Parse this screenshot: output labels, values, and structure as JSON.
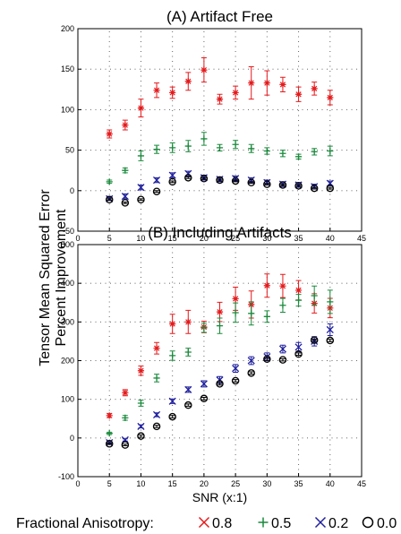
{
  "figure": {
    "ylabel_line1": "Tensor Mean Squared Error",
    "ylabel_line2": "Percent Improvement",
    "legend_title": "Fractional Anisotropy:"
  },
  "series_styles": [
    {
      "name": "0.8",
      "marker": "asterisk",
      "color": "#e41a1c"
    },
    {
      "name": "0.5",
      "marker": "plus",
      "color": "#1a8a3c"
    },
    {
      "name": "0.2",
      "marker": "cross",
      "color": "#1f1f9e"
    },
    {
      "name": "0.0",
      "marker": "circle",
      "color": "#000000"
    }
  ],
  "chart_data": [
    {
      "type": "scatter",
      "title": "(A) Artifact Free",
      "xlabel": "",
      "ylabel": "Tensor Mean Squared Error Percent Improvement",
      "xlim": [
        0,
        45
      ],
      "ylim": [
        -50,
        200
      ],
      "xticks": [
        "0",
        "5",
        "10",
        "15",
        "20",
        "25",
        "30",
        "35",
        "40",
        "45"
      ],
      "yticks": [
        "-50",
        "0",
        "50",
        "100",
        "150",
        "200"
      ],
      "grid": true,
      "error_bars": true,
      "x": [
        5,
        7.5,
        10,
        12.5,
        15,
        17.5,
        20,
        22.5,
        25,
        27.5,
        30,
        32.5,
        35,
        37.5,
        40
      ],
      "series": [
        {
          "name": "0.8",
          "values": [
            70,
            81,
            102,
            124,
            121,
            135,
            149,
            113,
            121,
            133,
            133,
            131,
            119,
            126,
            115
          ],
          "errors": [
            5,
            6,
            11,
            9,
            7,
            11,
            15,
            6,
            8,
            20,
            15,
            9,
            9,
            8,
            9
          ]
        },
        {
          "name": "0.5",
          "values": [
            11,
            25,
            43,
            51,
            53,
            55,
            64,
            53,
            57,
            52,
            49,
            46,
            42,
            48,
            49
          ],
          "errors": [
            2,
            3,
            6,
            5,
            6,
            7,
            8,
            4,
            5,
            5,
            4,
            4,
            3,
            4,
            6
          ]
        },
        {
          "name": "0.2",
          "values": [
            -10,
            -7,
            4,
            13,
            19,
            21,
            16,
            14,
            15,
            13,
            10,
            8,
            7,
            5,
            9
          ],
          "errors": [
            2,
            3,
            3,
            3,
            3,
            3,
            3,
            3,
            3,
            3,
            3,
            3,
            3,
            3,
            3
          ]
        },
        {
          "name": "0.0",
          "values": [
            -11,
            -15,
            -11,
            -1,
            11,
            16,
            15,
            13,
            12,
            10,
            8,
            7,
            6,
            3,
            3
          ],
          "errors": [
            1,
            1,
            1,
            1,
            1,
            1,
            1,
            1,
            1,
            1,
            1,
            1,
            1,
            1,
            1
          ]
        }
      ]
    },
    {
      "type": "scatter",
      "title": "(B) Including Artifacts",
      "xlabel": "SNR (x:1)",
      "ylabel": "Tensor Mean Squared Error Percent Improvement",
      "xlim": [
        0,
        45
      ],
      "ylim": [
        -100,
        500
      ],
      "xticks": [
        "0",
        "5",
        "10",
        "15",
        "20",
        "25",
        "30",
        "35",
        "40",
        "45"
      ],
      "yticks": [
        "-100",
        "0",
        "100",
        "200",
        "300",
        "400",
        "500"
      ],
      "grid": true,
      "error_bars": true,
      "x": [
        5,
        7.5,
        10,
        12.5,
        15,
        17.5,
        20,
        22.5,
        25,
        27.5,
        30,
        32.5,
        35,
        37.5,
        40
      ],
      "series": [
        {
          "name": "0.8",
          "values": [
            58,
            117,
            174,
            232,
            295,
            300,
            287,
            326,
            360,
            345,
            394,
            393,
            382,
            348,
            336
          ],
          "errors": [
            5,
            8,
            12,
            15,
            25,
            30,
            15,
            25,
            30,
            35,
            30,
            30,
            25,
            25,
            25
          ]
        },
        {
          "name": "0.5",
          "values": [
            12,
            52,
            90,
            155,
            213,
            222,
            285,
            290,
            324,
            322,
            314,
            343,
            356,
            368,
            352
          ],
          "errors": [
            3,
            6,
            8,
            10,
            12,
            10,
            12,
            20,
            25,
            30,
            15,
            18,
            15,
            25,
            30
          ]
        },
        {
          "name": "0.2",
          "values": [
            -12,
            -5,
            30,
            60,
            95,
            125,
            140,
            150,
            180,
            200,
            210,
            230,
            235,
            250,
            280
          ],
          "errors": [
            2,
            3,
            4,
            5,
            6,
            7,
            8,
            9,
            10,
            10,
            10,
            10,
            12,
            12,
            15
          ]
        },
        {
          "name": "0.0",
          "values": [
            -15,
            -18,
            5,
            30,
            55,
            85,
            102,
            140,
            148,
            168,
            204,
            202,
            217,
            253,
            252
          ],
          "errors": [
            2,
            2,
            3,
            3,
            3,
            3,
            3,
            3,
            3,
            3,
            3,
            3,
            3,
            3,
            3
          ]
        }
      ]
    }
  ]
}
